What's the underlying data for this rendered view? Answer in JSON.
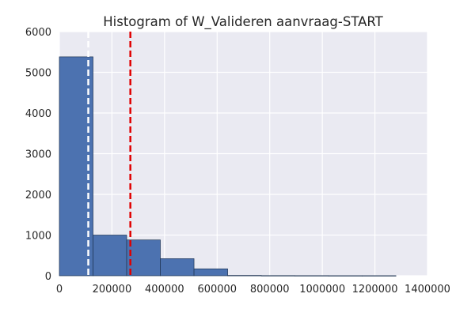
{
  "chart_data": {
    "type": "bar",
    "title": "Histogram of W_Valideren aanvraag-START",
    "xlabel": "",
    "ylabel": "",
    "xlim": [
      0,
      1400000
    ],
    "ylim": [
      0,
      6000
    ],
    "x_ticks": [
      "0",
      "200000",
      "400000",
      "600000",
      "800000",
      "1000000",
      "1200000",
      "1400000"
    ],
    "y_ticks": [
      "0",
      "1000",
      "2000",
      "3000",
      "4000",
      "5000",
      "6000"
    ],
    "bins": [
      {
        "start": 0,
        "end": 128000,
        "count": 5380
      },
      {
        "start": 128000,
        "end": 256000,
        "count": 1000
      },
      {
        "start": 256000,
        "end": 384000,
        "count": 880
      },
      {
        "start": 384000,
        "end": 512000,
        "count": 420
      },
      {
        "start": 512000,
        "end": 640000,
        "count": 170
      },
      {
        "start": 640000,
        "end": 768000,
        "count": 8
      },
      {
        "start": 768000,
        "end": 896000,
        "count": 4
      },
      {
        "start": 896000,
        "end": 1024000,
        "count": 3
      },
      {
        "start": 1024000,
        "end": 1152000,
        "count": 2
      },
      {
        "start": 1152000,
        "end": 1280000,
        "count": 2
      }
    ],
    "vlines": [
      {
        "x": 110000,
        "color": "#ffffff",
        "style": "dashed"
      },
      {
        "x": 270000,
        "color": "#e00000",
        "style": "dashed"
      }
    ],
    "grid": true,
    "bar_color": "#4c72b0",
    "bar_edge_color": "#1f3553",
    "background_color": "#eaeaf2",
    "grid_color": "#ffffff"
  }
}
